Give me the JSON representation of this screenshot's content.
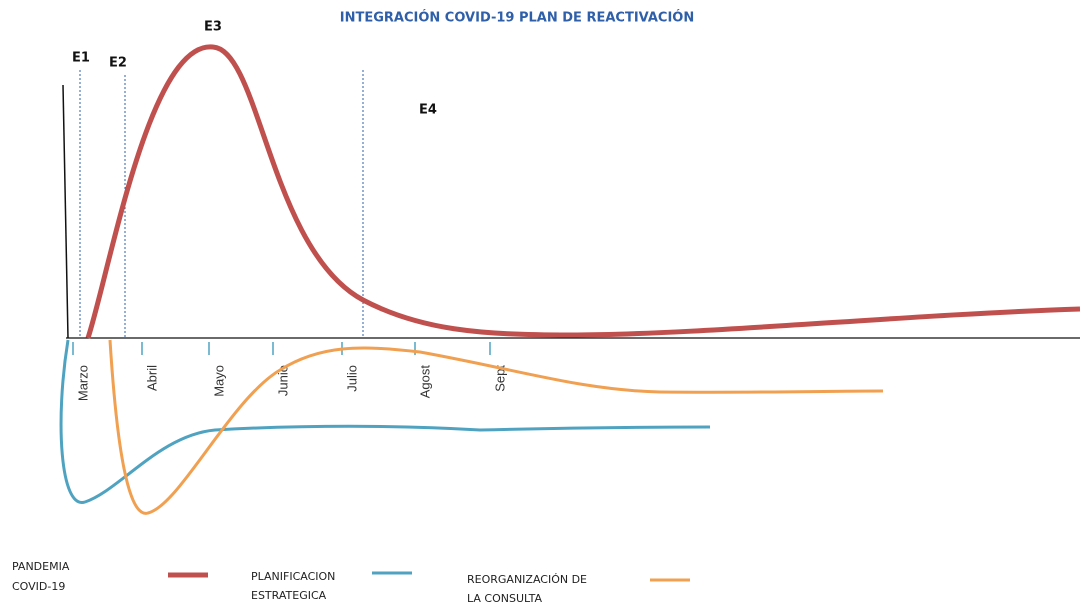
{
  "title": "INTEGRACIÓN COVID-19 PLAN DE REACTIVACIÓN",
  "stages": [
    "E1",
    "E2",
    "E3",
    "E4"
  ],
  "months": [
    "Marzo",
    "Abril",
    "Mayo",
    "Junio",
    "Julio",
    "Agost",
    "Sept"
  ],
  "legend": [
    {
      "lines": [
        "PANDEMIA",
        "COVID-19"
      ]
    },
    {
      "lines": [
        "PLANIFICACION",
        "ESTRATEGICA"
      ]
    },
    {
      "lines": [
        "REORGANIZACIÓN DE",
        "LA CONSULTA"
      ]
    }
  ]
}
